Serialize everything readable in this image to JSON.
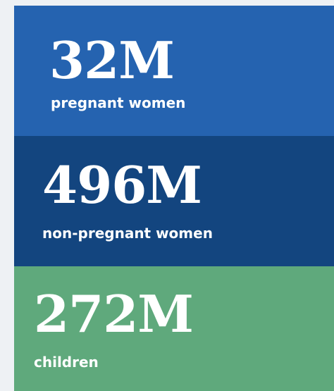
{
  "stats": [
    {
      "value": "32M",
      "label": "pregnant women"
    },
    {
      "value": "496M",
      "label": "non-pregnant women"
    },
    {
      "value": "272M",
      "label": "children"
    }
  ]
}
